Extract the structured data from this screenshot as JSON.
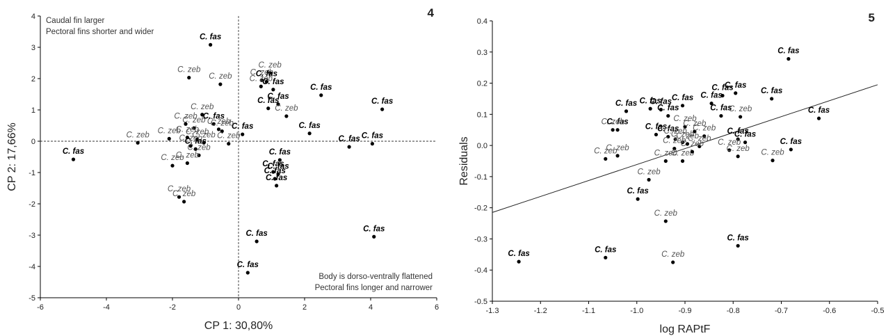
{
  "chart_data": [
    {
      "type": "scatter",
      "panel_label": "4",
      "xlabel": "CP 1: 30,80%",
      "ylabel": "CP 2: 17,66%",
      "xlim": [
        -6,
        6
      ],
      "ylim": [
        -5,
        4
      ],
      "xticks": [
        "-6",
        "-4",
        "-2",
        "0",
        "2",
        "4",
        "6"
      ],
      "yticks": [
        "-5",
        "-4",
        "-3",
        "-2",
        "-1",
        "0",
        "1",
        "2",
        "3",
        "4"
      ],
      "reference_lines": {
        "x": 0,
        "y": 0,
        "style": "dashed"
      },
      "annotations": {
        "top_left": [
          "Caudal fin larger",
          "Pectoral fins shorter and wider"
        ],
        "bottom_right": [
          "Body is dorso-ventrally flattened",
          "Pectoral fins longer and narrower"
        ]
      },
      "points": [
        {
          "x": -5.0,
          "y": -0.58,
          "label": "C. fas"
        },
        {
          "x": -3.05,
          "y": -0.05,
          "label": "C. zeb"
        },
        {
          "x": -0.85,
          "y": 3.08,
          "label": "C. fas"
        },
        {
          "x": -1.5,
          "y": 2.03,
          "label": "C. zeb"
        },
        {
          "x": -0.55,
          "y": 1.82,
          "label": "C. zeb"
        },
        {
          "x": 0.95,
          "y": 2.18,
          "label": "C. zeb"
        },
        {
          "x": 0.7,
          "y": 1.95,
          "label": "C. zeb"
        },
        {
          "x": 0.68,
          "y": 1.75,
          "label": "C. zeb"
        },
        {
          "x": 0.85,
          "y": 1.9,
          "label": "C. fas"
        },
        {
          "x": 1.05,
          "y": 1.65,
          "label": "C. fas"
        },
        {
          "x": 2.5,
          "y": 1.47,
          "label": "C. fas"
        },
        {
          "x": 4.35,
          "y": 1.02,
          "label": "C. fas"
        },
        {
          "x": 1.2,
          "y": 1.18,
          "label": "C. fas"
        },
        {
          "x": 0.9,
          "y": 1.05,
          "label": "C. fas"
        },
        {
          "x": 1.45,
          "y": 0.8,
          "label": "C. zeb"
        },
        {
          "x": 2.15,
          "y": 0.25,
          "label": "C. fas"
        },
        {
          "x": 0.12,
          "y": 0.22,
          "label": "C. fas"
        },
        {
          "x": -0.6,
          "y": 0.38,
          "label": "C. zeb"
        },
        {
          "x": -1.1,
          "y": 0.85,
          "label": "C. zeb"
        },
        {
          "x": -1.6,
          "y": 0.55,
          "label": "C. zeb"
        },
        {
          "x": -1.35,
          "y": 0.42,
          "label": "C. zeb"
        },
        {
          "x": -0.75,
          "y": 0.55,
          "label": "C. fas"
        },
        {
          "x": -0.5,
          "y": 0.32,
          "label": "C. zeb"
        },
        {
          "x": -2.1,
          "y": 0.08,
          "label": "C. zeb"
        },
        {
          "x": -1.55,
          "y": 0.12,
          "label": "C. zeb"
        },
        {
          "x": -1.25,
          "y": 0.05,
          "label": "C. zeb"
        },
        {
          "x": -1.05,
          "y": -0.05,
          "label": "C. zeb"
        },
        {
          "x": -1.45,
          "y": -0.15,
          "label": "C. zeb"
        },
        {
          "x": -1.3,
          "y": -0.25,
          "label": "C. fas"
        },
        {
          "x": -1.2,
          "y": -0.45,
          "label": "C. zeb"
        },
        {
          "x": -0.3,
          "y": -0.08,
          "label": "C. zeb"
        },
        {
          "x": -2.0,
          "y": -0.78,
          "label": "C. zeb"
        },
        {
          "x": -1.55,
          "y": -0.7,
          "label": "C. zeb"
        },
        {
          "x": -1.8,
          "y": -1.78,
          "label": "C. zeb"
        },
        {
          "x": -1.65,
          "y": -1.93,
          "label": "C. zeb"
        },
        {
          "x": 3.35,
          "y": -0.18,
          "label": "C. fas"
        },
        {
          "x": 4.05,
          "y": -0.08,
          "label": "C. fas"
        },
        {
          "x": 1.25,
          "y": -0.6,
          "label": "C. fas"
        },
        {
          "x": 1.05,
          "y": -0.98,
          "label": "C. fas"
        },
        {
          "x": 1.2,
          "y": -1.05,
          "label": "C. fas"
        },
        {
          "x": 1.1,
          "y": -1.2,
          "label": "C. fas"
        },
        {
          "x": 1.15,
          "y": -1.42,
          "label": "C. fas"
        },
        {
          "x": 0.55,
          "y": -3.2,
          "label": "C. fas"
        },
        {
          "x": 4.1,
          "y": -3.05,
          "label": "C. fas"
        },
        {
          "x": 0.28,
          "y": -4.2,
          "label": "C. fas"
        }
      ]
    },
    {
      "type": "scatter",
      "panel_label": "5",
      "xlabel": "log RAPtF",
      "ylabel": "Residuals",
      "xlim": [
        -1.3,
        -0.5
      ],
      "ylim": [
        -0.5,
        0.4
      ],
      "xticks": [
        "-1.3",
        "-1.2",
        "-1.1",
        "-1.0",
        "-0.9",
        "-0.8",
        "-0.7",
        "-0.6",
        "-0.5"
      ],
      "yticks": [
        "-0.5",
        "-0.4",
        "-0.3",
        "-0.2",
        "-0.1",
        "0.0",
        "0.1",
        "0.2",
        "0.3",
        "0.4"
      ],
      "regression_line": {
        "x": [
          -1.3,
          -0.5
        ],
        "y": [
          -0.215,
          0.195
        ]
      },
      "points": [
        {
          "x": -0.685,
          "y": 0.278,
          "label": "C. fas"
        },
        {
          "x": -0.72,
          "y": 0.15,
          "label": "C. fas"
        },
        {
          "x": -0.622,
          "y": 0.087,
          "label": "C. fas"
        },
        {
          "x": -1.022,
          "y": 0.11,
          "label": "C. fas"
        },
        {
          "x": -0.972,
          "y": 0.118,
          "label": "C. fas"
        },
        {
          "x": -0.95,
          "y": 0.115,
          "label": "C. fas"
        },
        {
          "x": -0.905,
          "y": 0.128,
          "label": "C. fas"
        },
        {
          "x": -0.935,
          "y": 0.095,
          "label": "C. fas"
        },
        {
          "x": -0.845,
          "y": 0.135,
          "label": "C. fas"
        },
        {
          "x": -0.822,
          "y": 0.16,
          "label": "C. fas"
        },
        {
          "x": -0.795,
          "y": 0.168,
          "label": "C. fas"
        },
        {
          "x": -0.825,
          "y": 0.095,
          "label": "C. fas"
        },
        {
          "x": -0.785,
          "y": 0.092,
          "label": "C. zeb"
        },
        {
          "x": -1.04,
          "y": 0.05,
          "label": "C. fas"
        },
        {
          "x": -1.05,
          "y": 0.05,
          "label": "C. zeb"
        },
        {
          "x": -0.9,
          "y": 0.06,
          "label": "C. zeb"
        },
        {
          "x": -0.88,
          "y": 0.045,
          "label": "C. zeb"
        },
        {
          "x": -0.86,
          "y": 0.03,
          "label": "C. zeb"
        },
        {
          "x": -0.96,
          "y": 0.035,
          "label": "C. fas"
        },
        {
          "x": -0.935,
          "y": 0.028,
          "label": "C. fas"
        },
        {
          "x": -0.92,
          "y": 0.02,
          "label": "C. zeb"
        },
        {
          "x": -0.905,
          "y": 0.01,
          "label": "C. zeb"
        },
        {
          "x": -0.895,
          "y": 0.005,
          "label": "C. zeb"
        },
        {
          "x": -0.87,
          "y": -0.003,
          "label": "C. zeb"
        },
        {
          "x": -0.79,
          "y": 0.02,
          "label": "C. fas"
        },
        {
          "x": -0.775,
          "y": 0.01,
          "label": "C. fas"
        },
        {
          "x": -0.808,
          "y": -0.015,
          "label": "C. zeb"
        },
        {
          "x": -0.79,
          "y": -0.035,
          "label": "C. zeb"
        },
        {
          "x": -0.68,
          "y": -0.013,
          "label": "C. fas"
        },
        {
          "x": -0.718,
          "y": -0.048,
          "label": "C. zeb"
        },
        {
          "x": -0.922,
          "y": -0.01,
          "label": "C. zeb"
        },
        {
          "x": -0.94,
          "y": -0.05,
          "label": "C. zeb"
        },
        {
          "x": -0.905,
          "y": -0.05,
          "label": "C. zeb"
        },
        {
          "x": -0.885,
          "y": -0.02,
          "label": "C. zeb"
        },
        {
          "x": -1.065,
          "y": -0.043,
          "label": "C. zeb"
        },
        {
          "x": -1.04,
          "y": -0.033,
          "label": "C. zeb"
        },
        {
          "x": -0.975,
          "y": -0.11,
          "label": "C. zeb"
        },
        {
          "x": -0.998,
          "y": -0.172,
          "label": "C. fas"
        },
        {
          "x": -0.94,
          "y": -0.243,
          "label": "C. zeb"
        },
        {
          "x": -0.79,
          "y": -0.322,
          "label": "C. fas"
        },
        {
          "x": -1.245,
          "y": -0.373,
          "label": "C. fas"
        },
        {
          "x": -1.065,
          "y": -0.36,
          "label": "C. fas"
        },
        {
          "x": -0.925,
          "y": -0.375,
          "label": "C. zeb"
        }
      ]
    }
  ]
}
